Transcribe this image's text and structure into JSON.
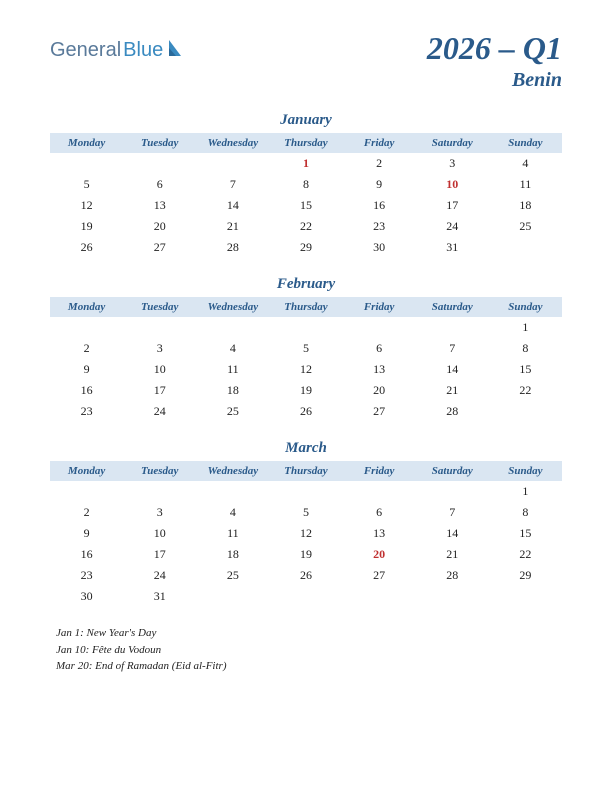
{
  "logo": {
    "part1": "General",
    "part2": "Blue"
  },
  "title": "2026 – Q1",
  "country": "Benin",
  "weekdays": [
    "Monday",
    "Tuesday",
    "Wednesday",
    "Thursday",
    "Friday",
    "Saturday",
    "Sunday"
  ],
  "months": [
    {
      "name": "January",
      "weeks": [
        [
          "",
          "",
          "",
          "1",
          "2",
          "3",
          "4"
        ],
        [
          "5",
          "6",
          "7",
          "8",
          "9",
          "10",
          "11"
        ],
        [
          "12",
          "13",
          "14",
          "15",
          "16",
          "17",
          "18"
        ],
        [
          "19",
          "20",
          "21",
          "22",
          "23",
          "24",
          "25"
        ],
        [
          "26",
          "27",
          "28",
          "29",
          "30",
          "31",
          ""
        ]
      ],
      "holidays": [
        "1",
        "10"
      ]
    },
    {
      "name": "February",
      "weeks": [
        [
          "",
          "",
          "",
          "",
          "",
          "",
          "1"
        ],
        [
          "2",
          "3",
          "4",
          "5",
          "6",
          "7",
          "8"
        ],
        [
          "9",
          "10",
          "11",
          "12",
          "13",
          "14",
          "15"
        ],
        [
          "16",
          "17",
          "18",
          "19",
          "20",
          "21",
          "22"
        ],
        [
          "23",
          "24",
          "25",
          "26",
          "27",
          "28",
          ""
        ]
      ],
      "holidays": []
    },
    {
      "name": "March",
      "weeks": [
        [
          "",
          "",
          "",
          "",
          "",
          "",
          "1"
        ],
        [
          "2",
          "3",
          "4",
          "5",
          "6",
          "7",
          "8"
        ],
        [
          "9",
          "10",
          "11",
          "12",
          "13",
          "14",
          "15"
        ],
        [
          "16",
          "17",
          "18",
          "19",
          "20",
          "21",
          "22"
        ],
        [
          "23",
          "24",
          "25",
          "26",
          "27",
          "28",
          "29"
        ],
        [
          "30",
          "31",
          "",
          "",
          "",
          "",
          ""
        ]
      ],
      "holidays": [
        "20"
      ]
    }
  ],
  "holiday_notes": [
    "Jan 1: New Year's Day",
    "Jan 10: Fête du Vodoun",
    "Mar 20: End of Ramadan (Eid al-Fitr)"
  ],
  "colors": {
    "header_bg": "#dae6f2",
    "accent": "#2a5a8a",
    "holiday": "#c03030"
  }
}
